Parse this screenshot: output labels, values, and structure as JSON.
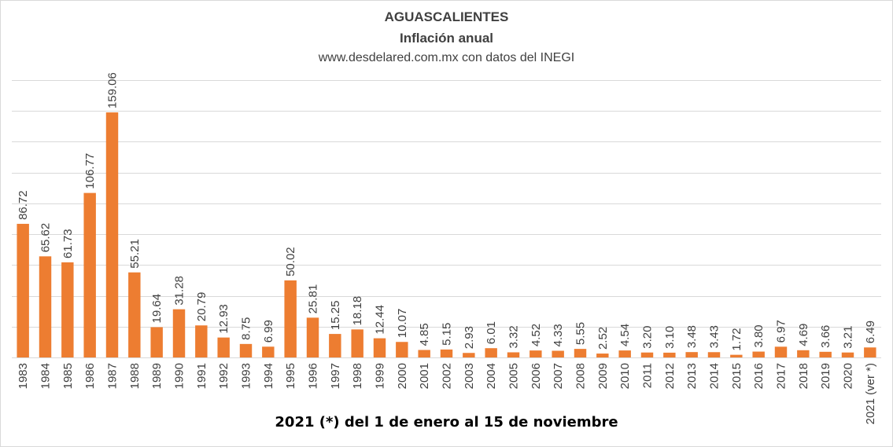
{
  "header": {
    "title": "AGUASCALIENTES",
    "subtitle": "Inflación anual",
    "source": "www.desdelared.com.mx con datos del INEGI"
  },
  "footnote": "2021 (*) del 1 de enero al 15 de noviembre",
  "colors": {
    "bar": "#ed7d31",
    "grid": "#d9d9d9",
    "text": "#404040"
  },
  "chart_data": {
    "type": "bar",
    "title": "AGUASCALIENTES",
    "subtitle": "Inflación anual",
    "xlabel": "",
    "ylabel": "",
    "ylim": [
      0,
      180
    ],
    "grid": true,
    "legend": "none",
    "categories": [
      "1983",
      "1984",
      "1985",
      "1986",
      "1987",
      "1988",
      "1989",
      "1990",
      "1991",
      "1992",
      "1993",
      "1994",
      "1995",
      "1996",
      "1997",
      "1998",
      "1999",
      "2000",
      "2001",
      "2002",
      "2003",
      "2004",
      "2005",
      "2006",
      "2007",
      "2008",
      "2009",
      "2010",
      "2011",
      "2012",
      "2013",
      "2014",
      "2015",
      "2016",
      "2017",
      "2018",
      "2019",
      "2020",
      "2021 (ver *)"
    ],
    "values": [
      86.72,
      65.62,
      61.73,
      106.77,
      159.06,
      55.21,
      19.64,
      31.28,
      20.79,
      12.93,
      8.75,
      6.99,
      50.02,
      25.81,
      15.25,
      18.18,
      12.44,
      10.07,
      4.85,
      5.15,
      2.93,
      6.01,
      3.32,
      4.52,
      4.33,
      5.55,
      2.52,
      4.54,
      3.2,
      3.1,
      3.48,
      3.43,
      1.72,
      3.8,
      6.97,
      4.69,
      3.66,
      3.21,
      6.49
    ],
    "labels": [
      "86.72",
      "65.62",
      "61.73",
      "106.77",
      "159.06",
      "55.21",
      "19.64",
      "31.28",
      "20.79",
      "12.93",
      "8.75",
      "6.99",
      "50.02",
      "25.81",
      "15.25",
      "18.18",
      "12.44",
      "10.07",
      "4.85",
      "5.15",
      "2.93",
      "6.01",
      "3.32",
      "4.52",
      "4.33",
      "5.55",
      "2.52",
      "4.54",
      "3.20",
      "3.10",
      "3.48",
      "3.43",
      "1.72",
      "3.80",
      "6.97",
      "4.69",
      "3.66",
      "3.21",
      "6.49"
    ]
  }
}
